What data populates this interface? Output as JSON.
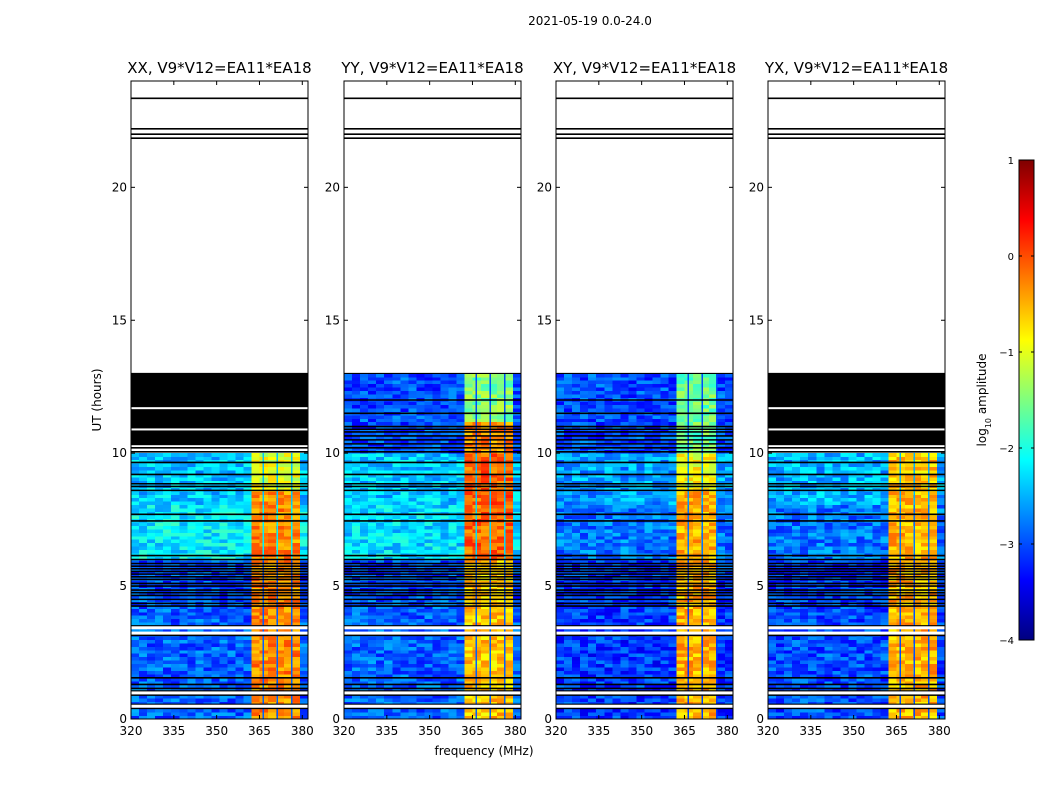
{
  "figure": {
    "suptitle": "2021-05-19 0.0-24.0"
  },
  "chart_data": {
    "type": "heatmap",
    "suptitle": "2021-05-19 0.0-24.0",
    "xlabel": "frequency (MHz)",
    "ylabel": "UT (hours)",
    "xlim": [
      320,
      382
    ],
    "ylim": [
      0,
      24
    ],
    "x_ticks": [
      320,
      335,
      350,
      365,
      380
    ],
    "y_ticks": [
      0,
      5,
      10,
      15,
      20
    ],
    "panels": [
      {
        "title": "XX, V9*V12=EA11*EA18",
        "flagged_block": [
          10.3,
          13.0
        ],
        "base_level": [
          {
            "from": 0.0,
            "to": 4.5,
            "level": -2.9
          },
          {
            "from": 4.5,
            "to": 6.0,
            "level": -3.0
          },
          {
            "from": 6.0,
            "to": 8.0,
            "level": -2.2
          },
          {
            "from": 8.0,
            "to": 10.0,
            "level": -2.4
          }
        ],
        "bright_band_mhz": [
          361,
          380.5
        ],
        "bright_level": [
          {
            "from": 0.0,
            "to": 8.6,
            "level": -0.3
          },
          {
            "from": 8.6,
            "to": 10.0,
            "level": -1.0
          }
        ]
      },
      {
        "title": "YY, V9*V12=EA11*EA18",
        "flagged_block": null,
        "base_level": [
          {
            "from": 0.0,
            "to": 4.5,
            "level": -2.9
          },
          {
            "from": 4.5,
            "to": 6.0,
            "level": -3.0
          },
          {
            "from": 6.0,
            "to": 8.0,
            "level": -2.3
          },
          {
            "from": 8.0,
            "to": 10.0,
            "level": -2.4
          },
          {
            "from": 10.0,
            "to": 13.0,
            "level": -3.0
          }
        ],
        "bright_band_mhz": [
          361,
          380.5
        ],
        "bright_level": [
          {
            "from": 0.0,
            "to": 6.0,
            "level": -0.6
          },
          {
            "from": 6.0,
            "to": 10.0,
            "level": -0.1
          },
          {
            "from": 10.0,
            "to": 11.2,
            "level": -0.3
          },
          {
            "from": 11.2,
            "to": 13.0,
            "level": -1.5
          }
        ]
      },
      {
        "title": "XY, V9*V12=EA11*EA18",
        "flagged_block": null,
        "base_level": [
          {
            "from": 0.0,
            "to": 4.5,
            "level": -3.1
          },
          {
            "from": 4.5,
            "to": 6.0,
            "level": -3.1
          },
          {
            "from": 6.0,
            "to": 8.0,
            "level": -2.8
          },
          {
            "from": 8.0,
            "to": 10.0,
            "level": -2.6
          },
          {
            "from": 10.0,
            "to": 13.0,
            "level": -3.0
          }
        ],
        "bright_band_mhz": [
          361,
          377
        ],
        "bright_level": [
          {
            "from": 0.0,
            "to": 8.6,
            "level": -0.5
          },
          {
            "from": 8.6,
            "to": 10.0,
            "level": -0.9
          },
          {
            "from": 10.0,
            "to": 13.0,
            "level": -1.6
          }
        ]
      },
      {
        "title": "YX, V9*V12=EA11*EA18",
        "flagged_block": [
          10.3,
          13.0
        ],
        "base_level": [
          {
            "from": 0.0,
            "to": 4.5,
            "level": -3.0
          },
          {
            "from": 4.5,
            "to": 6.0,
            "level": -3.1
          },
          {
            "from": 6.0,
            "to": 8.0,
            "level": -2.8
          },
          {
            "from": 8.0,
            "to": 10.0,
            "level": -2.5
          }
        ],
        "bright_band_mhz": [
          361,
          380.5
        ],
        "bright_level": [
          {
            "from": 0.0,
            "to": 8.6,
            "level": -0.5
          },
          {
            "from": 8.6,
            "to": 10.0,
            "level": -0.6
          }
        ]
      }
    ],
    "flagged_rows_hours": [
      0.4,
      0.55,
      0.9,
      1.05,
      1.15,
      1.3,
      1.55,
      3.15,
      3.5,
      4.25,
      4.35,
      4.5,
      4.65,
      4.75,
      4.85,
      5.0,
      5.1,
      5.25,
      5.35,
      5.45,
      5.55,
      5.65,
      5.75,
      5.85,
      6.0,
      6.15,
      7.45,
      7.7,
      8.6,
      8.75,
      8.85,
      9.2,
      9.65,
      10.05,
      10.2,
      10.35,
      10.5,
      10.65,
      10.8,
      10.9,
      11.0,
      11.5,
      12.0
    ],
    "blank_rows_hours": [
      0.5,
      1.0,
      3.25,
      3.45
    ],
    "data_end_hours": 13.0,
    "upper_lines_hours": [
      21.85,
      22.0,
      22.2,
      23.35
    ],
    "colorbar": {
      "label": "log10 amplitude",
      "label_main": "log",
      "label_sub": "10",
      "label_rest": " amplitude",
      "range": [
        -4,
        1
      ],
      "ticks": [
        "1",
        "0",
        "−1",
        "−2",
        "−3",
        "−4"
      ],
      "colors": [
        "#00007f",
        "#0000ff",
        "#007fff",
        "#00ffff",
        "#7fff7f",
        "#ffff00",
        "#ff7f00",
        "#ff0000",
        "#7f0000"
      ]
    }
  }
}
